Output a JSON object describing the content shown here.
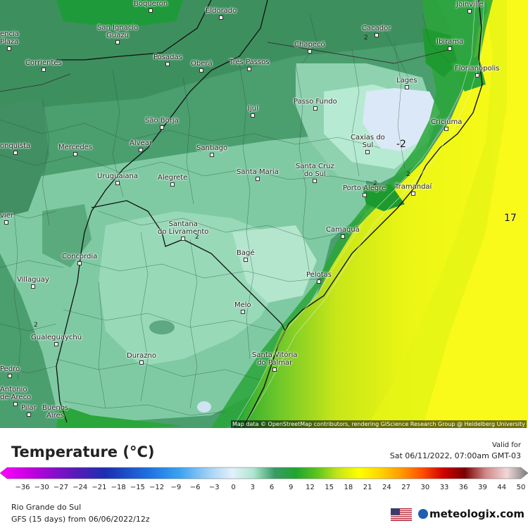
{
  "map": {
    "attribution": "Map data © OpenStreetMap contributors, rendering GIScience Research Group @ Heidelberg University",
    "cities": [
      {
        "name": "Boqueron"
      },
      {
        "name": "Eldorado"
      },
      {
        "name": "Joinville"
      },
      {
        "name": "encia\nPlaza"
      },
      {
        "name": "San Ignacio\nGuazú"
      },
      {
        "name": "Cacador"
      },
      {
        "name": "Chapecó"
      },
      {
        "name": "Ibirama"
      },
      {
        "name": "Corrientes"
      },
      {
        "name": "Posadas"
      },
      {
        "name": "Oberá"
      },
      {
        "name": "Três Passos"
      },
      {
        "name": "Florianópolis"
      },
      {
        "name": "Lages"
      },
      {
        "name": "Passo Fundo"
      },
      {
        "name": "Ijuí"
      },
      {
        "name": "Criciúma"
      },
      {
        "name": "São Borja"
      },
      {
        "name": "Caxias do\nSul"
      },
      {
        "name": "onquista"
      },
      {
        "name": "Mercedes"
      },
      {
        "name": "Alvear"
      },
      {
        "name": "Santiago"
      },
      {
        "name": "Santa Cruz\ndo Sul"
      },
      {
        "name": "Uruguaiana"
      },
      {
        "name": "Alegrete"
      },
      {
        "name": "Santa Maria"
      },
      {
        "name": "Porto Alegre"
      },
      {
        "name": "Tramandaí"
      },
      {
        "name": "vier"
      },
      {
        "name": "Santana\ndo Livramento"
      },
      {
        "name": "Camaquã"
      },
      {
        "name": "Concordia"
      },
      {
        "name": "Bagé"
      },
      {
        "name": "Villaguay"
      },
      {
        "name": "Pelotas"
      },
      {
        "name": "Melo"
      },
      {
        "name": "Gualeguaychú"
      },
      {
        "name": "Durazno"
      },
      {
        "name": "Santa Vitória\ndo Palmar"
      },
      {
        "name": "Pedro"
      },
      {
        "name": "Antonio\nde Areco"
      },
      {
        "name": "Pilar"
      },
      {
        "name": "Buenos\nAires"
      }
    ],
    "values": [
      "-2",
      "17",
      "2",
      "2",
      "2",
      "2",
      "2"
    ]
  },
  "legend": {
    "title": "Temperature (°C)",
    "valid_label": "Valid for",
    "valid_time": "Sat 06/11/2022, 07:00am GMT-03",
    "ticks": [
      "−36",
      "−30",
      "−27",
      "−24",
      "−21",
      "−18",
      "−15",
      "−12",
      "−9",
      "−6",
      "−3",
      "0",
      "3",
      "6",
      "9",
      "12",
      "15",
      "18",
      "21",
      "24",
      "27",
      "30",
      "33",
      "36",
      "39",
      "44",
      "50"
    ],
    "region": "Rio Grande do Sul",
    "model": "GFS (15 days) from 06/06/2022/12z",
    "brand": "meteologix.com",
    "colors": {
      "cold_extreme": "#ff00ff",
      "zero": "#aee6d0",
      "mild": "#3fbf3f",
      "warm": "#ffff00",
      "hot_extreme": "#7a0000"
    }
  }
}
